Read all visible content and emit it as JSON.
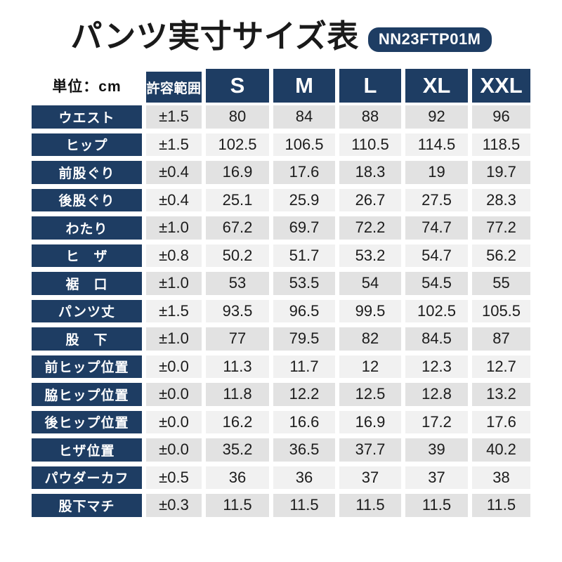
{
  "header": {
    "title": "パンツ実寸サイズ表",
    "model_number": "NN23FTP01M"
  },
  "unit_label": "単位：cm",
  "colors": {
    "navy": "#1e3d63",
    "row_dark": "#e2e2e2",
    "row_light": "#f1f1f1",
    "title_text": "#1a1a1a",
    "cell_text": "#1c1c1c",
    "background": "#ffffff"
  },
  "chart_data": {
    "type": "table",
    "title": "パンツ実寸サイズ表",
    "model": "NN23FTP01M",
    "unit": "cm",
    "columns": [
      "許容範囲",
      "S",
      "M",
      "L",
      "XL",
      "XXL"
    ],
    "rows": [
      {
        "label": "ウエスト",
        "tolerance": "±1.5",
        "values": [
          "80",
          "84",
          "88",
          "92",
          "96"
        ]
      },
      {
        "label": "ヒップ",
        "tolerance": "±1.5",
        "values": [
          "102.5",
          "106.5",
          "110.5",
          "114.5",
          "118.5"
        ]
      },
      {
        "label": "前股ぐり",
        "tolerance": "±0.4",
        "values": [
          "16.9",
          "17.6",
          "18.3",
          "19",
          "19.7"
        ]
      },
      {
        "label": "後股ぐり",
        "tolerance": "±0.4",
        "values": [
          "25.1",
          "25.9",
          "26.7",
          "27.5",
          "28.3"
        ]
      },
      {
        "label": "わたり",
        "tolerance": "±1.0",
        "values": [
          "67.2",
          "69.7",
          "72.2",
          "74.7",
          "77.2"
        ]
      },
      {
        "label": "ヒ　ザ",
        "tolerance": "±0.8",
        "values": [
          "50.2",
          "51.7",
          "53.2",
          "54.7",
          "56.2"
        ]
      },
      {
        "label": "裾　口",
        "tolerance": "±1.0",
        "values": [
          "53",
          "53.5",
          "54",
          "54.5",
          "55"
        ]
      },
      {
        "label": "パンツ丈",
        "tolerance": "±1.5",
        "values": [
          "93.5",
          "96.5",
          "99.5",
          "102.5",
          "105.5"
        ]
      },
      {
        "label": "股　下",
        "tolerance": "±1.0",
        "values": [
          "77",
          "79.5",
          "82",
          "84.5",
          "87"
        ]
      },
      {
        "label": "前ヒップ位置",
        "tolerance": "±0.0",
        "values": [
          "11.3",
          "11.7",
          "12",
          "12.3",
          "12.7"
        ]
      },
      {
        "label": "脇ヒップ位置",
        "tolerance": "±0.0",
        "values": [
          "11.8",
          "12.2",
          "12.5",
          "12.8",
          "13.2"
        ]
      },
      {
        "label": "後ヒップ位置",
        "tolerance": "±0.0",
        "values": [
          "16.2",
          "16.6",
          "16.9",
          "17.2",
          "17.6"
        ]
      },
      {
        "label": "ヒザ位置",
        "tolerance": "±0.0",
        "values": [
          "35.2",
          "36.5",
          "37.7",
          "39",
          "40.2"
        ]
      },
      {
        "label": "パウダーカフ",
        "tolerance": "±0.5",
        "values": [
          "36",
          "36",
          "37",
          "37",
          "38"
        ]
      },
      {
        "label": "股下マチ",
        "tolerance": "±0.3",
        "values": [
          "11.5",
          "11.5",
          "11.5",
          "11.5",
          "11.5"
        ]
      }
    ]
  }
}
